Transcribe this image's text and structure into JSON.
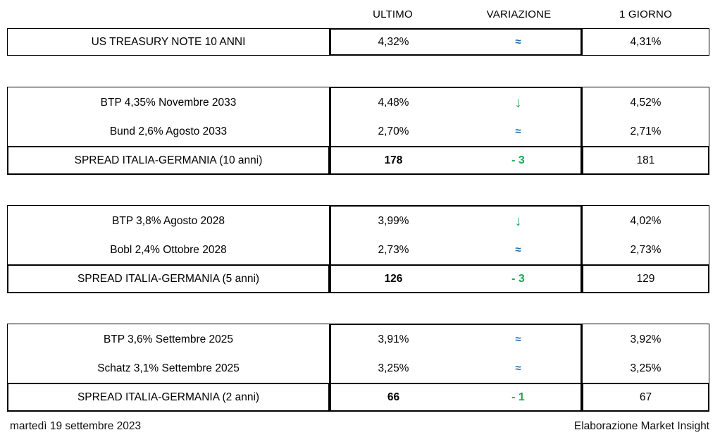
{
  "headers": {
    "ultimo": "ULTIMO",
    "variazione": "VARIAZIONE",
    "giorno": "1 GIORNO"
  },
  "colors": {
    "green": "#22a455",
    "blue": "#1e6cab",
    "border": "#000000"
  },
  "tables": [
    {
      "single": true,
      "rows": [
        {
          "label": "US TREASURY NOTE 10 ANNI",
          "ultimo": "4,32%",
          "var_symbol": "≈",
          "var_type": "flat",
          "giorno": "4,31%"
        }
      ]
    },
    {
      "rows": [
        {
          "label": "BTP 4,35% Novembre 2033",
          "ultimo": "4,48%",
          "var_symbol": "↓",
          "var_type": "down",
          "giorno": "4,52%"
        },
        {
          "label": "Bund 2,6% Agosto 2033",
          "ultimo": "2,70%",
          "var_symbol": "≈",
          "var_type": "flat",
          "giorno": "2,71%"
        }
      ],
      "spread": {
        "label": "SPREAD ITALIA-GERMANIA (10 anni)",
        "ultimo": "178",
        "variazione": "- 3",
        "giorno": "181"
      }
    },
    {
      "rows": [
        {
          "label": "BTP 3,8% Agosto 2028",
          "ultimo": "3,99%",
          "var_symbol": "↓",
          "var_type": "down",
          "giorno": "4,02%"
        },
        {
          "label": "Bobl 2,4% Ottobre 2028",
          "ultimo": "2,73%",
          "var_symbol": "≈",
          "var_type": "flat",
          "giorno": "2,73%"
        }
      ],
      "spread": {
        "label": "SPREAD ITALIA-GERMANIA (5 anni)",
        "ultimo": "126",
        "variazione": "- 3",
        "giorno": "129"
      }
    },
    {
      "rows": [
        {
          "label": "BTP 3,6% Settembre 2025",
          "ultimo": "3,91%",
          "var_symbol": "≈",
          "var_type": "flat",
          "giorno": "3,92%"
        },
        {
          "label": "Schatz 3,1% Settembre 2025",
          "ultimo": "3,25%",
          "var_symbol": "≈",
          "var_type": "flat",
          "giorno": "3,25%"
        }
      ],
      "spread": {
        "label": "SPREAD ITALIA-GERMANIA (2 anni)",
        "ultimo": "66",
        "variazione": "- 1",
        "giorno": "67"
      }
    }
  ],
  "footer": {
    "date": "martedì 19 settembre 2023",
    "credit": "Elaborazione Market Insight"
  },
  "chart_data": {
    "type": "table",
    "columns": [
      "",
      "ULTIMO",
      "VARIAZIONE",
      "1 GIORNO"
    ],
    "rows": [
      [
        "US TREASURY NOTE 10 ANNI",
        "4,32%",
        "≈",
        "4,31%"
      ],
      [
        "BTP 4,35% Novembre 2033",
        "4,48%",
        "↓",
        "4,52%"
      ],
      [
        "Bund 2,6% Agosto 2033",
        "2,70%",
        "≈",
        "2,71%"
      ],
      [
        "SPREAD ITALIA-GERMANIA (10 anni)",
        "178",
        "- 3",
        "181"
      ],
      [
        "BTP 3,8% Agosto 2028",
        "3,99%",
        "↓",
        "4,02%"
      ],
      [
        "Bobl 2,4% Ottobre 2028",
        "2,73%",
        "≈",
        "2,73%"
      ],
      [
        "SPREAD ITALIA-GERMANIA (5 anni)",
        "126",
        "- 3",
        "129"
      ],
      [
        "BTP 3,6% Settembre 2025",
        "3,91%",
        "≈",
        "3,92%"
      ],
      [
        "Schatz 3,1% Settembre 2025",
        "3,25%",
        "≈",
        "3,25%"
      ],
      [
        "SPREAD ITALIA-GERMANIA (2 anni)",
        "66",
        "- 1",
        "67"
      ]
    ]
  }
}
